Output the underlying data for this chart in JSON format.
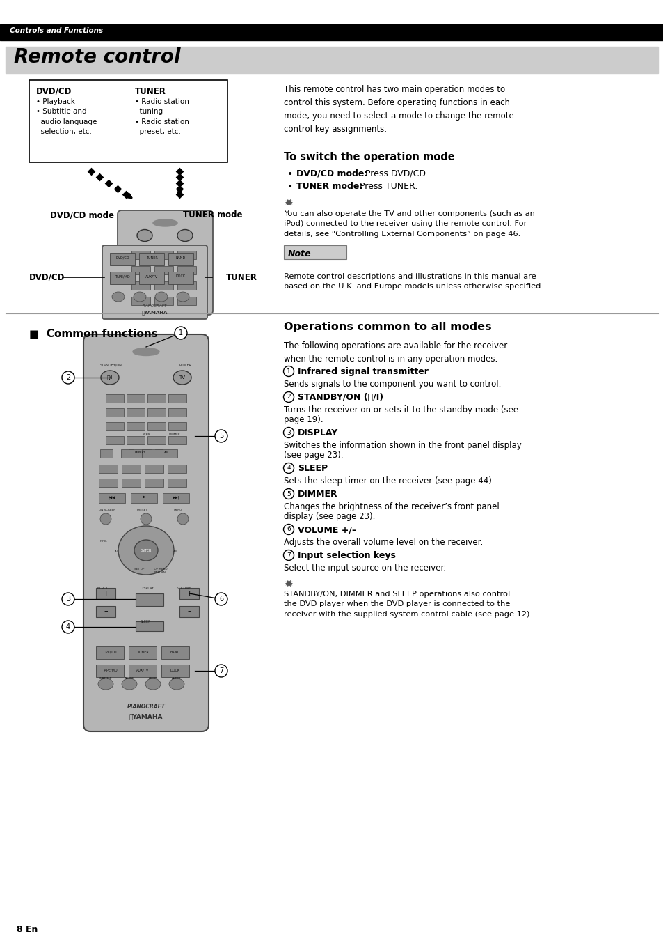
{
  "page_bg": "#ffffff",
  "header_bg": "#000000",
  "header_text": "Controls and Functions",
  "header_text_color": "#ffffff",
  "title_bg": "#cccccc",
  "title_text": "Remote control",
  "title_text_color": "#000000",
  "right_intro": "This remote control has two main operation modes to\ncontrol this system. Before operating functions in each\nmode, you need to select a mode to change the remote\ncontrol key assignments.",
  "switch_mode_title": "To switch the operation mode",
  "tip_text1": "You can also operate the TV and other components (such as an\niPod) connected to the receiver using the remote control. For\ndetails, see “Controlling External Components” on page 46.",
  "note_label": "Note",
  "note_bg": "#cccccc",
  "note_text": "Remote control descriptions and illustrations in this manual are\nbased on the U.K. and Europe models unless otherwise specified.",
  "common_functions_title": "■  Common functions",
  "operations_title": "Operations common to all modes",
  "ops_intro": "The following operations are available for the receiver\nwhen the remote control is in any operation modes.",
  "ops": [
    {
      "num": "1",
      "title": "Infrared signal transmitter",
      "desc": "Sends signals to the component you want to control."
    },
    {
      "num": "2",
      "title": "STANDBY/ON (⏻/I)",
      "desc": "Turns the receiver on or sets it to the standby mode (see\npage 19)."
    },
    {
      "num": "3",
      "title": "DISPLAY",
      "desc": "Switches the information shown in the front panel display\n(see page 23)."
    },
    {
      "num": "4",
      "title": "SLEEP",
      "desc": "Sets the sleep timer on the receiver (see page 44)."
    },
    {
      "num": "5",
      "title": "DIMMER",
      "desc": "Changes the brightness of the receiver’s front panel\ndisplay (see page 23)."
    },
    {
      "num": "6",
      "title": "VOLUME +/–",
      "desc": "Adjusts the overall volume level on the receiver."
    },
    {
      "num": "7",
      "title": "Input selection keys",
      "desc": "Select the input source on the receiver."
    }
  ],
  "tip_text2": "STANDBY/ON, DIMMER and SLEEP operations also control\nthe DVD player when the DVD player is connected to the\nreceiver with the supplied system control cable (see page 12).",
  "page_num": "8 En",
  "dvdcd_box_title": "DVD/CD",
  "dvdcd_box_items": "• Playback\n• Subtitle and\n  audio language\n  selection, etc.",
  "tuner_box_title": "TUNER",
  "tuner_box_items": "• Radio station\n  tuning\n• Radio station\n  preset, etc.",
  "dvdcd_mode_label": "DVD/CD mode",
  "tuner_mode_label": "TUNER mode",
  "dvdcd_label": "DVD/CD",
  "tuner_label": "TUNER"
}
